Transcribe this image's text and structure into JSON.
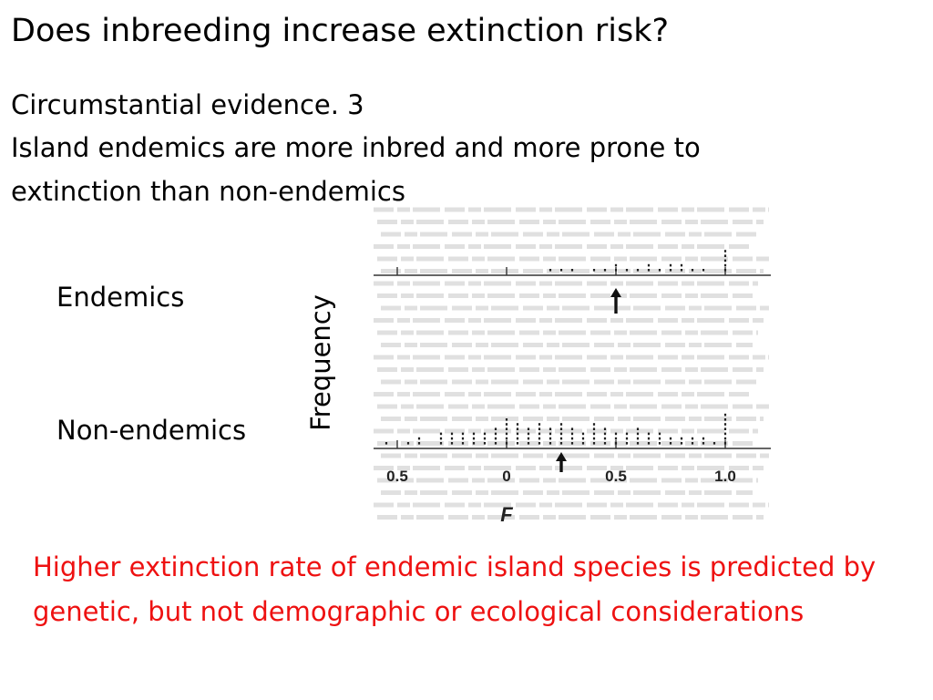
{
  "slide": {
    "title": "Does inbreeding increase extinction risk?",
    "subtitle_lines": [
      "Circumstantial evidence. 3",
      "Island endemics are more inbred and more prone to",
      "extinction than non-endemics"
    ],
    "conclusion": "Higher extinction rate of endemic island species is predicted by genetic, but not demographic or ecological considerations",
    "colors": {
      "text": "#000000",
      "conclusion": "#ee1111",
      "ghost_text": "#c8c8c8"
    }
  },
  "chart_data": {
    "type": "scatter",
    "style": "stacked dot histogram (each dot = one population/species)",
    "ylabel": "Frequency",
    "xlabel": "F",
    "xtick_labels": [
      "0.5",
      "0",
      "0.5",
      "1.0"
    ],
    "xticks": [
      -0.5,
      0,
      0.5,
      1.0
    ],
    "xlim": [
      -0.6,
      1.1
    ],
    "panels": [
      {
        "name": "Endemics",
        "arrow_icon": "up-arrow-icon",
        "arrow_x": 0.5,
        "bins": [
          0.2,
          0.25,
          0.3,
          0.4,
          0.45,
          0.5,
          0.55,
          0.6,
          0.65,
          0.7,
          0.75,
          0.8,
          0.85,
          0.9,
          1.0
        ],
        "counts": [
          1,
          1,
          1,
          1,
          1,
          2,
          1,
          1,
          2,
          1,
          2,
          2,
          1,
          1,
          5
        ]
      },
      {
        "name": "Non-endemics",
        "arrow_icon": "up-arrow-icon",
        "arrow_x": 0.25,
        "bins": [
          -0.55,
          -0.45,
          -0.4,
          -0.3,
          -0.25,
          -0.2,
          -0.15,
          -0.1,
          -0.05,
          0.0,
          0.05,
          0.1,
          0.15,
          0.2,
          0.25,
          0.3,
          0.35,
          0.4,
          0.45,
          0.5,
          0.55,
          0.6,
          0.65,
          0.7,
          0.75,
          0.8,
          0.85,
          0.9,
          0.95,
          1.0
        ],
        "counts": [
          1,
          1,
          2,
          3,
          3,
          3,
          3,
          3,
          4,
          6,
          5,
          4,
          5,
          4,
          5,
          4,
          3,
          5,
          4,
          3,
          3,
          4,
          3,
          3,
          2,
          2,
          2,
          2,
          1,
          7
        ]
      }
    ]
  }
}
